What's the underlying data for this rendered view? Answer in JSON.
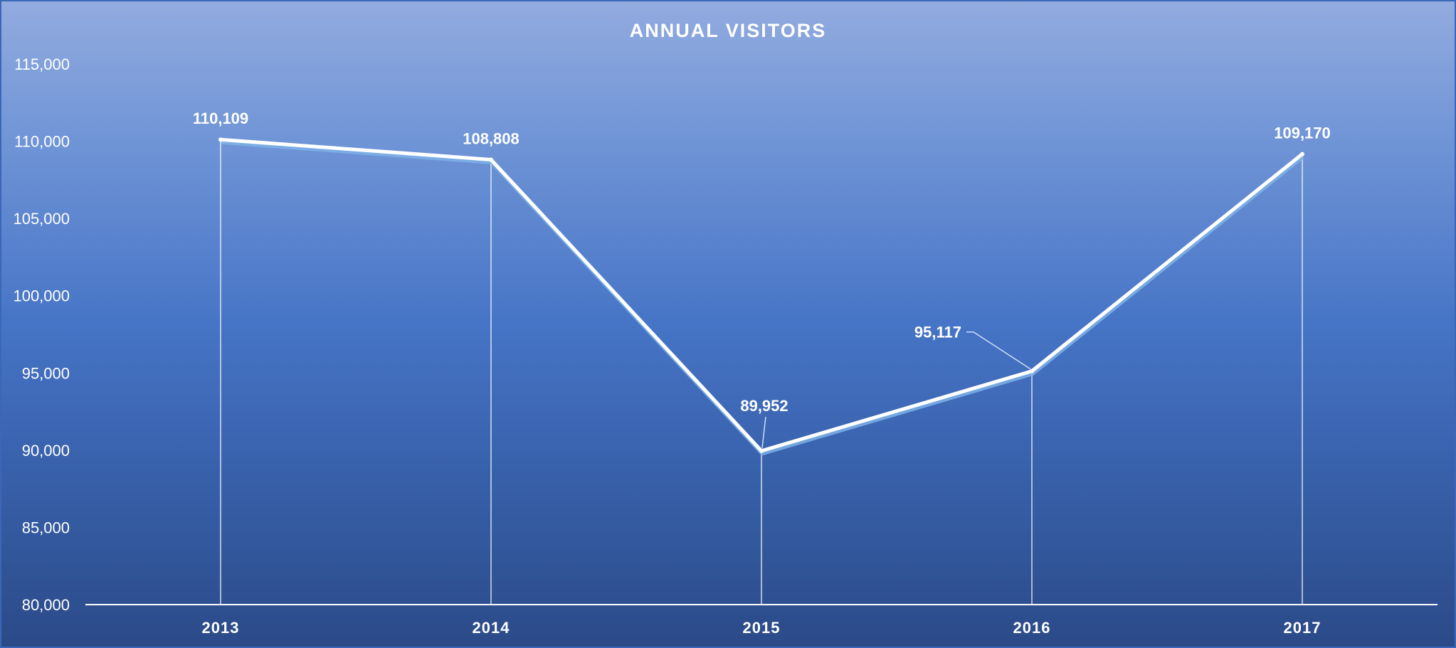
{
  "chart_data": {
    "type": "line",
    "title": "ANNUAL VISITORS",
    "xlabel": "",
    "ylabel": "",
    "categories": [
      "2013",
      "2014",
      "2015",
      "2016",
      "2017"
    ],
    "series": [
      {
        "values": [
          110109,
          108808,
          89952,
          95117,
          109170
        ]
      }
    ],
    "data_labels": [
      "110,109",
      "108,808",
      "89,952",
      "95,117",
      "109,170"
    ],
    "ylim": [
      80000,
      115000
    ],
    "yticks": [
      "80,000",
      "85,000",
      "90,000",
      "95,000",
      "100,000",
      "105,000",
      "110,000",
      "115,000"
    ],
    "grid": false,
    "drop_lines": true,
    "legend": "none",
    "colors": {
      "line": "#ffffff",
      "line_shadow": "#7eb2e6",
      "background_top": "#92abdf",
      "background_bottom": "#2b4a88"
    }
  }
}
